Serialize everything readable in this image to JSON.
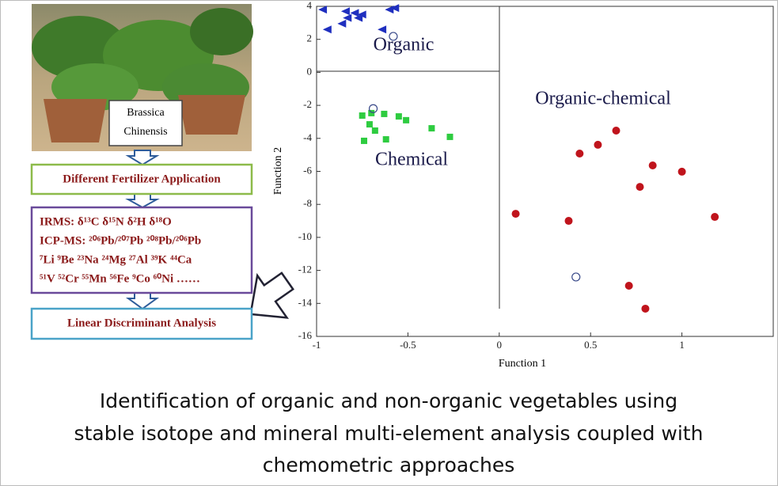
{
  "chart_data": {
    "type": "scatter",
    "xlabel": "Function 1",
    "ylabel": "Function 2",
    "xlim": [
      -1,
      1.5
    ],
    "ylim": [
      -16,
      4
    ],
    "xticks": [
      -1,
      -0.5,
      0,
      0.5,
      1
    ],
    "yticks": [
      -16,
      -14,
      -12,
      -10,
      -8,
      -6,
      -4,
      -2,
      0,
      2,
      4
    ],
    "annotations": [
      "Organic",
      "Chemical",
      "Organic-chemical"
    ],
    "series": [
      {
        "marker": "triangle",
        "color": "#1f2fbf",
        "x": [
          -0.965,
          -0.84,
          -0.79,
          -0.75,
          -0.83,
          -0.77,
          -0.94,
          -0.86,
          -0.6,
          -0.57,
          -0.64
        ],
        "y": [
          3.8,
          3.7,
          3.6,
          3.5,
          3.3,
          3.3,
          2.6,
          2.95,
          3.8,
          3.9,
          2.6
        ]
      },
      {
        "marker": "square",
        "color": "#2ecc40",
        "x": [
          -0.75,
          -0.7,
          -0.63,
          -0.55,
          -0.51,
          -0.71,
          -0.68,
          -0.74,
          -0.62,
          -0.37,
          -0.27
        ],
        "y": [
          -2.62,
          -2.47,
          -2.52,
          -2.67,
          -2.9,
          -3.15,
          -3.53,
          -4.15,
          -4.06,
          -3.39,
          -3.91
        ]
      },
      {
        "marker": "circle",
        "color": "#c0141c",
        "x": [
          0.64,
          0.44,
          0.54,
          0.84,
          1.0,
          0.77,
          0.09,
          0.38,
          1.18,
          0.71,
          0.8
        ],
        "y": [
          -3.53,
          -4.92,
          -4.39,
          -5.64,
          -6.02,
          -6.94,
          -8.57,
          -9.0,
          -8.76,
          -12.93,
          -14.32
        ]
      },
      {
        "marker": "open-circle",
        "color": "#3a4a8a",
        "x": [
          -0.69,
          -0.58,
          0.42
        ],
        "y": [
          -2.2,
          2.18,
          -12.4
        ]
      }
    ]
  },
  "flow": {
    "photo_label": [
      "Brassica",
      "Chinensis"
    ],
    "application": "Different Fertilizer Application",
    "methods": [
      "IRMS: δ¹³C δ¹⁵N δ²H δ¹⁸O",
      "ICP-MS: ²⁰⁶Pb/²⁰⁷Pb ²⁰⁸Pb/²⁰⁶Pb",
      "⁷Li ⁹Be ²³Na ²⁴Mg ²⁷Al ³⁹K ⁴⁴Ca",
      "⁵¹V ⁵²Cr ⁵⁵Mn ⁵⁶Fe ⁹Co ⁶⁰Ni ……"
    ],
    "analysis": "Linear Discriminant Analysis"
  },
  "caption": [
    "Identification of organic and non-organic vegetables using",
    "stable isotope and mineral multi-element analysis coupled with",
    "chemometric approaches"
  ]
}
